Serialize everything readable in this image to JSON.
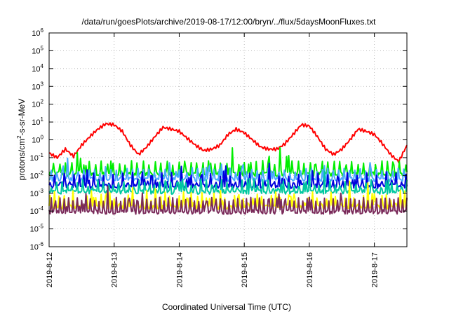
{
  "chart_data": {
    "type": "line",
    "title": "/data/run/goesPlots/archive/2019-08-17/12:00/bryn/../flux/5daysMoonFluxes.txt",
    "xlabel": "Coordinated Universal Time (UTC)",
    "ylabel_parts": [
      "protons/cm",
      "2",
      "-s-sr-MeV"
    ],
    "yscale": "log",
    "ylim": [
      1e-06,
      1000000.0
    ],
    "xlim": [
      "2019-08-12",
      "2019-08-17 12:00"
    ],
    "grid": true,
    "legend": "none",
    "y_ticks": [
      {
        "value": 1e-06,
        "base": "10",
        "exp": "-6"
      },
      {
        "value": 1e-05,
        "base": "10",
        "exp": "-5"
      },
      {
        "value": 0.0001,
        "base": "10",
        "exp": "-4"
      },
      {
        "value": 0.001,
        "base": "10",
        "exp": "-3"
      },
      {
        "value": 0.01,
        "base": "10",
        "exp": "-2"
      },
      {
        "value": 0.1,
        "base": "10",
        "exp": "-1"
      },
      {
        "value": 1.0,
        "base": "10",
        "exp": "0"
      },
      {
        "value": 10.0,
        "base": "10",
        "exp": "1"
      },
      {
        "value": 100.0,
        "base": "10",
        "exp": "2"
      },
      {
        "value": 1000.0,
        "base": "10",
        "exp": "3"
      },
      {
        "value": 10000.0,
        "base": "10",
        "exp": "4"
      },
      {
        "value": 100000.0,
        "base": "10",
        "exp": "5"
      },
      {
        "value": 1000000.0,
        "base": "10",
        "exp": "6"
      }
    ],
    "x_ticks": [
      {
        "date": "2019-08-12",
        "label": "2019-8-12"
      },
      {
        "date": "2019-08-13",
        "label": "2019-8-13"
      },
      {
        "date": "2019-08-14",
        "label": "2019-8-14"
      },
      {
        "date": "2019-08-15",
        "label": "2019-8-15"
      },
      {
        "date": "2019-08-16",
        "label": "2019-8-16"
      },
      {
        "date": "2019-08-17",
        "label": "2019-8-17"
      }
    ],
    "series": [
      {
        "color": "#ff0000",
        "points": [
          [
            "2019-08-12 00:00",
            0.18
          ],
          [
            "2019-08-12 03:00",
            0.1
          ],
          [
            "2019-08-12 06:00",
            0.3
          ],
          [
            "2019-08-12 09:00",
            0.12
          ],
          [
            "2019-08-12 12:00",
            0.5
          ],
          [
            "2019-08-12 15:00",
            1.5
          ],
          [
            "2019-08-12 18:00",
            4
          ],
          [
            "2019-08-12 21:00",
            8
          ],
          [
            "2019-08-13 00:00",
            7
          ],
          [
            "2019-08-13 03:00",
            3
          ],
          [
            "2019-08-13 06:00",
            0.5
          ],
          [
            "2019-08-13 09:00",
            0.15
          ],
          [
            "2019-08-13 12:00",
            0.4
          ],
          [
            "2019-08-13 15:00",
            1.5
          ],
          [
            "2019-08-13 18:00",
            5
          ],
          [
            "2019-08-13 21:00",
            4
          ],
          [
            "2019-08-14 00:00",
            3
          ],
          [
            "2019-08-14 03:00",
            1.2
          ],
          [
            "2019-08-14 06:00",
            0.5
          ],
          [
            "2019-08-14 09:00",
            0.25
          ],
          [
            "2019-08-14 12:00",
            0.3
          ],
          [
            "2019-08-14 15:00",
            0.5
          ],
          [
            "2019-08-14 18:00",
            2
          ],
          [
            "2019-08-14 21:00",
            4
          ],
          [
            "2019-08-15 00:00",
            2.5
          ],
          [
            "2019-08-15 03:00",
            1
          ],
          [
            "2019-08-15 06:00",
            0.4
          ],
          [
            "2019-08-15 09:00",
            0.3
          ],
          [
            "2019-08-15 12:00",
            0.3
          ],
          [
            "2019-08-15 15:00",
            0.6
          ],
          [
            "2019-08-15 18:00",
            2
          ],
          [
            "2019-08-15 21:00",
            7
          ],
          [
            "2019-08-16 00:00",
            6
          ],
          [
            "2019-08-16 03:00",
            1.5
          ],
          [
            "2019-08-16 06:00",
            0.3
          ],
          [
            "2019-08-16 09:00",
            0.15
          ],
          [
            "2019-08-16 12:00",
            0.3
          ],
          [
            "2019-08-16 15:00",
            1
          ],
          [
            "2019-08-16 18:00",
            4
          ],
          [
            "2019-08-16 21:00",
            3
          ],
          [
            "2019-08-17 00:00",
            2
          ],
          [
            "2019-08-17 03:00",
            0.6
          ],
          [
            "2019-08-17 06:00",
            0.15
          ],
          [
            "2019-08-17 09:00",
            0.06
          ],
          [
            "2019-08-17 12:00",
            0.5
          ]
        ]
      },
      {
        "color": "#00ee00",
        "base": 0.012,
        "amplitude": 1.0,
        "period_hours": 2.2,
        "seed": 3
      },
      {
        "color": "#4aa8ff",
        "base": 0.006,
        "amplitude": 0.9,
        "period_hours": 2.0,
        "seed": 5
      },
      {
        "color": "#0000dd",
        "base": 0.0025,
        "amplitude": 0.9,
        "period_hours": 1.8,
        "seed": 7
      },
      {
        "color": "#00c8a0",
        "base": 0.0012,
        "amplitude": 0.8,
        "period_hours": 1.9,
        "seed": 11
      },
      {
        "color": "#ffff00",
        "base": 0.00017,
        "amplitude": 1.0,
        "period_hours": 1.7,
        "seed": 13
      },
      {
        "color": "#7a2a5a",
        "base": 9e-05,
        "amplitude": 1.1,
        "period_hours": 1.6,
        "seed": 17
      }
    ]
  }
}
